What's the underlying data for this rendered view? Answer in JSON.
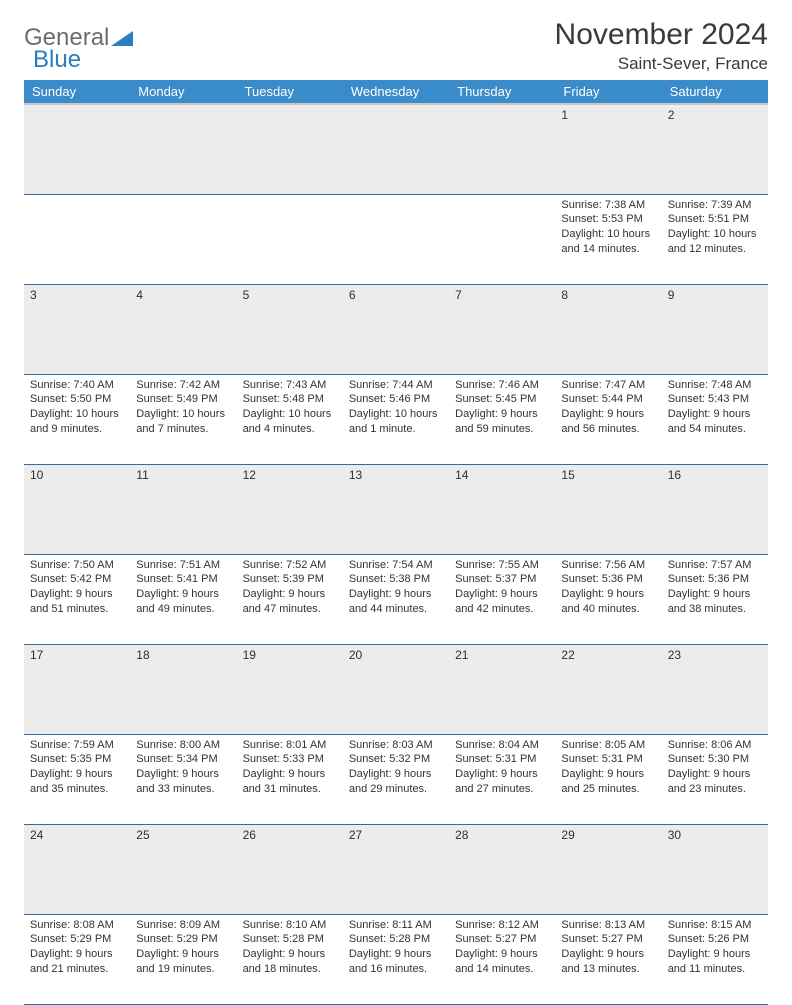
{
  "brand": {
    "part1": "General",
    "part2": "Blue"
  },
  "header": {
    "month_title": "November 2024",
    "location": "Saint-Sever, France"
  },
  "colors": {
    "header_bg": "#3a8bc9",
    "header_text": "#ffffff",
    "daynum_bg": "#ececec",
    "row_divider": "#2a6da8",
    "logo_gray": "#6d6d6d",
    "logo_blue": "#2b7cc1",
    "text": "#333333"
  },
  "day_headers": [
    "Sunday",
    "Monday",
    "Tuesday",
    "Wednesday",
    "Thursday",
    "Friday",
    "Saturday"
  ],
  "weeks": [
    {
      "numbers": [
        "",
        "",
        "",
        "",
        "",
        "1",
        "2"
      ],
      "cells": [
        {
          "sunrise": "",
          "sunset": "",
          "daylight": ""
        },
        {
          "sunrise": "",
          "sunset": "",
          "daylight": ""
        },
        {
          "sunrise": "",
          "sunset": "",
          "daylight": ""
        },
        {
          "sunrise": "",
          "sunset": "",
          "daylight": ""
        },
        {
          "sunrise": "",
          "sunset": "",
          "daylight": ""
        },
        {
          "sunrise": "Sunrise: 7:38 AM",
          "sunset": "Sunset: 5:53 PM",
          "daylight": "Daylight: 10 hours and 14 minutes."
        },
        {
          "sunrise": "Sunrise: 7:39 AM",
          "sunset": "Sunset: 5:51 PM",
          "daylight": "Daylight: 10 hours and 12 minutes."
        }
      ]
    },
    {
      "numbers": [
        "3",
        "4",
        "5",
        "6",
        "7",
        "8",
        "9"
      ],
      "cells": [
        {
          "sunrise": "Sunrise: 7:40 AM",
          "sunset": "Sunset: 5:50 PM",
          "daylight": "Daylight: 10 hours and 9 minutes."
        },
        {
          "sunrise": "Sunrise: 7:42 AM",
          "sunset": "Sunset: 5:49 PM",
          "daylight": "Daylight: 10 hours and 7 minutes."
        },
        {
          "sunrise": "Sunrise: 7:43 AM",
          "sunset": "Sunset: 5:48 PM",
          "daylight": "Daylight: 10 hours and 4 minutes."
        },
        {
          "sunrise": "Sunrise: 7:44 AM",
          "sunset": "Sunset: 5:46 PM",
          "daylight": "Daylight: 10 hours and 1 minute."
        },
        {
          "sunrise": "Sunrise: 7:46 AM",
          "sunset": "Sunset: 5:45 PM",
          "daylight": "Daylight: 9 hours and 59 minutes."
        },
        {
          "sunrise": "Sunrise: 7:47 AM",
          "sunset": "Sunset: 5:44 PM",
          "daylight": "Daylight: 9 hours and 56 minutes."
        },
        {
          "sunrise": "Sunrise: 7:48 AM",
          "sunset": "Sunset: 5:43 PM",
          "daylight": "Daylight: 9 hours and 54 minutes."
        }
      ]
    },
    {
      "numbers": [
        "10",
        "11",
        "12",
        "13",
        "14",
        "15",
        "16"
      ],
      "cells": [
        {
          "sunrise": "Sunrise: 7:50 AM",
          "sunset": "Sunset: 5:42 PM",
          "daylight": "Daylight: 9 hours and 51 minutes."
        },
        {
          "sunrise": "Sunrise: 7:51 AM",
          "sunset": "Sunset: 5:41 PM",
          "daylight": "Daylight: 9 hours and 49 minutes."
        },
        {
          "sunrise": "Sunrise: 7:52 AM",
          "sunset": "Sunset: 5:39 PM",
          "daylight": "Daylight: 9 hours and 47 minutes."
        },
        {
          "sunrise": "Sunrise: 7:54 AM",
          "sunset": "Sunset: 5:38 PM",
          "daylight": "Daylight: 9 hours and 44 minutes."
        },
        {
          "sunrise": "Sunrise: 7:55 AM",
          "sunset": "Sunset: 5:37 PM",
          "daylight": "Daylight: 9 hours and 42 minutes."
        },
        {
          "sunrise": "Sunrise: 7:56 AM",
          "sunset": "Sunset: 5:36 PM",
          "daylight": "Daylight: 9 hours and 40 minutes."
        },
        {
          "sunrise": "Sunrise: 7:57 AM",
          "sunset": "Sunset: 5:36 PM",
          "daylight": "Daylight: 9 hours and 38 minutes."
        }
      ]
    },
    {
      "numbers": [
        "17",
        "18",
        "19",
        "20",
        "21",
        "22",
        "23"
      ],
      "cells": [
        {
          "sunrise": "Sunrise: 7:59 AM",
          "sunset": "Sunset: 5:35 PM",
          "daylight": "Daylight: 9 hours and 35 minutes."
        },
        {
          "sunrise": "Sunrise: 8:00 AM",
          "sunset": "Sunset: 5:34 PM",
          "daylight": "Daylight: 9 hours and 33 minutes."
        },
        {
          "sunrise": "Sunrise: 8:01 AM",
          "sunset": "Sunset: 5:33 PM",
          "daylight": "Daylight: 9 hours and 31 minutes."
        },
        {
          "sunrise": "Sunrise: 8:03 AM",
          "sunset": "Sunset: 5:32 PM",
          "daylight": "Daylight: 9 hours and 29 minutes."
        },
        {
          "sunrise": "Sunrise: 8:04 AM",
          "sunset": "Sunset: 5:31 PM",
          "daylight": "Daylight: 9 hours and 27 minutes."
        },
        {
          "sunrise": "Sunrise: 8:05 AM",
          "sunset": "Sunset: 5:31 PM",
          "daylight": "Daylight: 9 hours and 25 minutes."
        },
        {
          "sunrise": "Sunrise: 8:06 AM",
          "sunset": "Sunset: 5:30 PM",
          "daylight": "Daylight: 9 hours and 23 minutes."
        }
      ]
    },
    {
      "numbers": [
        "24",
        "25",
        "26",
        "27",
        "28",
        "29",
        "30"
      ],
      "cells": [
        {
          "sunrise": "Sunrise: 8:08 AM",
          "sunset": "Sunset: 5:29 PM",
          "daylight": "Daylight: 9 hours and 21 minutes."
        },
        {
          "sunrise": "Sunrise: 8:09 AM",
          "sunset": "Sunset: 5:29 PM",
          "daylight": "Daylight: 9 hours and 19 minutes."
        },
        {
          "sunrise": "Sunrise: 8:10 AM",
          "sunset": "Sunset: 5:28 PM",
          "daylight": "Daylight: 9 hours and 18 minutes."
        },
        {
          "sunrise": "Sunrise: 8:11 AM",
          "sunset": "Sunset: 5:28 PM",
          "daylight": "Daylight: 9 hours and 16 minutes."
        },
        {
          "sunrise": "Sunrise: 8:12 AM",
          "sunset": "Sunset: 5:27 PM",
          "daylight": "Daylight: 9 hours and 14 minutes."
        },
        {
          "sunrise": "Sunrise: 8:13 AM",
          "sunset": "Sunset: 5:27 PM",
          "daylight": "Daylight: 9 hours and 13 minutes."
        },
        {
          "sunrise": "Sunrise: 8:15 AM",
          "sunset": "Sunset: 5:26 PM",
          "daylight": "Daylight: 9 hours and 11 minutes."
        }
      ]
    }
  ]
}
